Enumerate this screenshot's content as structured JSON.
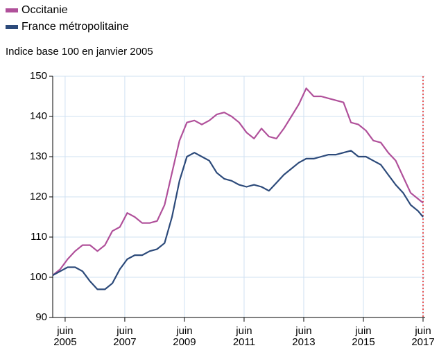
{
  "chart_data": {
    "type": "line",
    "subtitle": "Indice base 100 en janvier 2005",
    "x": [
      "2005-01",
      "2005-04",
      "2005-07",
      "2005-10",
      "2006-01",
      "2006-04",
      "2006-07",
      "2006-10",
      "2007-01",
      "2007-04",
      "2007-07",
      "2007-10",
      "2008-01",
      "2008-04",
      "2008-07",
      "2008-10",
      "2009-01",
      "2009-04",
      "2009-07",
      "2009-10",
      "2010-01",
      "2010-04",
      "2010-07",
      "2010-10",
      "2011-01",
      "2011-04",
      "2011-07",
      "2011-10",
      "2012-01",
      "2012-04",
      "2012-07",
      "2012-10",
      "2013-01",
      "2013-04",
      "2013-07",
      "2013-10",
      "2014-01",
      "2014-04",
      "2014-07",
      "2014-10",
      "2015-01",
      "2015-04",
      "2015-07",
      "2015-10",
      "2016-01",
      "2016-04",
      "2016-07",
      "2016-10",
      "2017-01",
      "2017-04",
      "2017-06"
    ],
    "series": [
      {
        "name": "Occitanie",
        "color": "#b0509a",
        "values": [
          100.5,
          102,
          104.5,
          106.5,
          108,
          108,
          106.5,
          108,
          111.5,
          112.5,
          116,
          115,
          113.5,
          113.5,
          114,
          118,
          126,
          134,
          138.5,
          139,
          138,
          139,
          140.5,
          141,
          140,
          138.5,
          136,
          134.5,
          137,
          135,
          134.5,
          137,
          140,
          143,
          147,
          145,
          145,
          144.5,
          144,
          143.5,
          138.5,
          138,
          136.5,
          134,
          133.5,
          131,
          129,
          125,
          121,
          119.5,
          118.5
        ]
      },
      {
        "name": "France métropolitaine",
        "color": "#2c4a7a",
        "values": [
          100.5,
          101.5,
          102.5,
          102.5,
          101.5,
          99,
          97,
          97,
          98.5,
          102,
          104.5,
          105.5,
          105.5,
          106.5,
          107,
          108.5,
          115,
          124,
          130,
          131,
          130,
          129,
          126,
          124.5,
          124,
          123,
          122.5,
          123,
          122.5,
          121.5,
          123.5,
          125.5,
          127,
          128.5,
          129.5,
          129.5,
          130,
          130.5,
          130.5,
          131,
          131.5,
          130,
          130,
          129,
          128,
          125.5,
          123,
          121,
          118,
          116.5,
          115
        ]
      }
    ],
    "ylim": [
      90,
      150
    ],
    "yticks": [
      90,
      100,
      110,
      120,
      130,
      140,
      150
    ],
    "xlim": [
      "2005-01",
      "2017-06"
    ],
    "xticks": [
      {
        "value": "2005-06",
        "label": "juin\n2005"
      },
      {
        "value": "2007-06",
        "label": "juin\n2007"
      },
      {
        "value": "2009-06",
        "label": "juin\n2009"
      },
      {
        "value": "2011-06",
        "label": "juin\n2011"
      },
      {
        "value": "2013-06",
        "label": "juin\n2013"
      },
      {
        "value": "2015-06",
        "label": "juin\n2015"
      },
      {
        "value": "2017-06",
        "label": "juin\n2017"
      }
    ],
    "reference_line": {
      "x": "2017-06",
      "color": "#e02020"
    },
    "grid": true,
    "legend": "top-left"
  }
}
